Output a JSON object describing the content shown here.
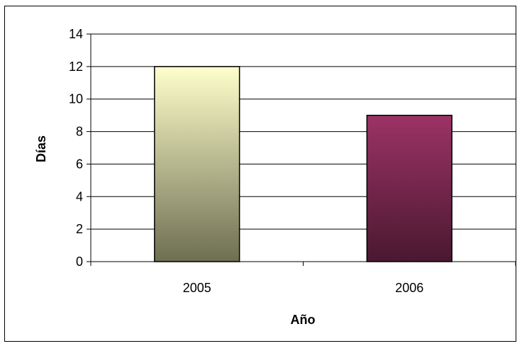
{
  "chart_data": {
    "type": "bar",
    "categories": [
      "2005",
      "2006"
    ],
    "values": [
      12,
      9
    ],
    "title": "",
    "xlabel": "Año",
    "ylabel": "Días",
    "ylim": [
      0,
      14
    ],
    "ytick_step": 2,
    "yticks": [
      "0",
      "2",
      "4",
      "6",
      "8",
      "10",
      "12",
      "14"
    ],
    "grid": true,
    "legend": "none",
    "bar_gradients": [
      {
        "top": "#ffffcc",
        "bottom": "#6e6e52"
      },
      {
        "top": "#9c3366",
        "bottom": "#4a1830"
      }
    ],
    "colors": {
      "axis": "#000000",
      "grid": "#000000",
      "bar_outline": "#000000",
      "background": "#ffffff"
    }
  }
}
